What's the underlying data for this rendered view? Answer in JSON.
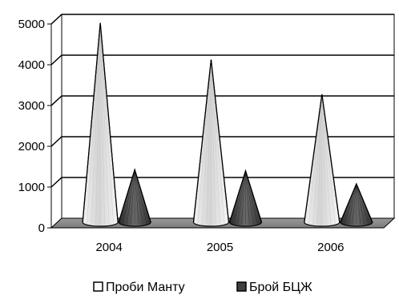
{
  "chart_data": {
    "type": "bar",
    "shape": "cone",
    "categories": [
      "2004",
      "2005",
      "2006"
    ],
    "series": [
      {
        "name": "Проби Манту",
        "values": [
          4850,
          3950,
          3100
        ],
        "color": "#d9d9d9"
      },
      {
        "name": "Брой БЦЖ",
        "values": [
          1250,
          1220,
          900
        ],
        "color": "#404040"
      }
    ],
    "yticks": [
      "0",
      "1000",
      "2000",
      "3000",
      "4000",
      "5000"
    ],
    "ylim": [
      0,
      5000
    ],
    "grid": true,
    "legend_position": "bottom"
  }
}
